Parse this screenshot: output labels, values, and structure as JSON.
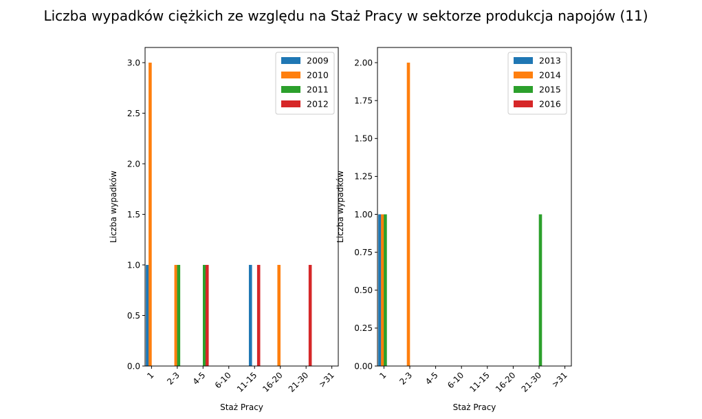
{
  "title": "Liczba wypadków ciężkich ze względu na Staż Pracy w sektorze produkcja napojów  (11)",
  "chart_data": [
    {
      "type": "bar",
      "categories": [
        "1",
        "2-3",
        "4-5",
        "6-10",
        "11-15",
        "16-20",
        "21-30",
        ">31"
      ],
      "series": [
        {
          "name": "2009",
          "color": "#1f77b4",
          "values": [
            1,
            0,
            0,
            0,
            1,
            0,
            0,
            0
          ]
        },
        {
          "name": "2010",
          "color": "#ff7f0e",
          "values": [
            3,
            1,
            0,
            0,
            0,
            1,
            0,
            0
          ]
        },
        {
          "name": "2011",
          "color": "#2ca02c",
          "values": [
            0,
            1,
            1,
            0,
            0,
            0,
            0,
            0
          ]
        },
        {
          "name": "2012",
          "color": "#d62728",
          "values": [
            0,
            0,
            1,
            0,
            1,
            0,
            1,
            0
          ]
        }
      ],
      "xlabel": "Staż Pracy",
      "ylabel": "Liczba wypadków",
      "ylim": [
        0,
        3.15
      ],
      "yticks": [
        "0.0",
        "0.5",
        "1.0",
        "1.5",
        "2.0",
        "2.5",
        "3.0"
      ],
      "legend": "top-right",
      "grid": false
    },
    {
      "type": "bar",
      "categories": [
        "1",
        "2-3",
        "4-5",
        "6-10",
        "11-15",
        "16-20",
        "21-30",
        ">31"
      ],
      "series": [
        {
          "name": "2013",
          "color": "#1f77b4",
          "values": [
            1,
            0,
            0,
            0,
            0,
            0,
            0,
            0
          ]
        },
        {
          "name": "2014",
          "color": "#ff7f0e",
          "values": [
            1,
            2,
            0,
            0,
            0,
            0,
            0,
            0
          ]
        },
        {
          "name": "2015",
          "color": "#2ca02c",
          "values": [
            1,
            0,
            0,
            0,
            0,
            0,
            1,
            0
          ]
        },
        {
          "name": "2016",
          "color": "#d62728",
          "values": [
            0,
            0,
            0,
            0,
            0,
            0,
            0,
            0
          ]
        }
      ],
      "xlabel": "Staż Pracy",
      "ylabel": "Liczba wypadków",
      "ylim": [
        0,
        2.1
      ],
      "yticks": [
        "0.00",
        "0.25",
        "0.50",
        "0.75",
        "1.00",
        "1.25",
        "1.50",
        "1.75",
        "2.00"
      ],
      "legend": "top-right",
      "grid": false
    }
  ]
}
